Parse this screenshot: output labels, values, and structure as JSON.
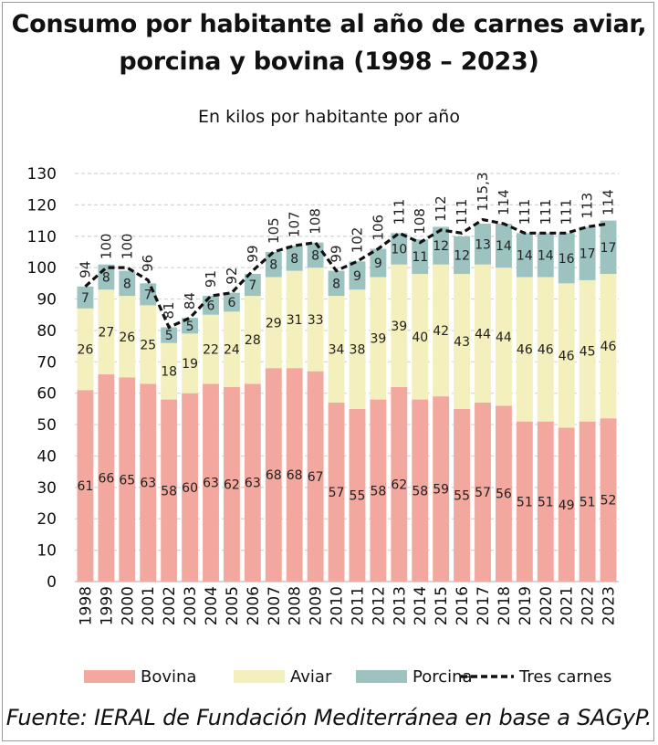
{
  "chart_data": {
    "type": "bar",
    "stacked": true,
    "title": "Consumo por habitante al año de carnes aviar, porcina y bovina (1998 – 2023)",
    "subtitle": "En kilos por habitante por año",
    "source": "Fuente: IERAL de Fundación Mediterránea en base a SAGyP.",
    "categories": [
      "1998",
      "1999",
      "2000",
      "2001",
      "2002",
      "2003",
      "2004",
      "2005",
      "2006",
      "2007",
      "2008",
      "2009",
      "2010",
      "2011",
      "2012",
      "2013",
      "2014",
      "2015",
      "2016",
      "2017",
      "2018",
      "2019",
      "2020",
      "2021",
      "2022",
      "2023"
    ],
    "ylim": [
      0,
      130
    ],
    "yticks": [
      0,
      10,
      20,
      30,
      40,
      50,
      60,
      70,
      80,
      90,
      100,
      110,
      120,
      130
    ],
    "grid": true,
    "legend": "bottom",
    "series": [
      {
        "name": "Bovina",
        "color": "#f2a89e",
        "values": [
          61,
          66,
          65,
          63,
          58,
          60,
          63,
          62,
          63,
          68,
          68,
          67,
          57,
          55,
          58,
          62,
          58,
          59,
          55,
          57,
          56,
          51,
          51,
          49,
          51,
          52
        ]
      },
      {
        "name": "Aviar",
        "color": "#f3f0bd",
        "values": [
          26,
          27,
          26,
          25,
          18,
          19,
          22,
          24,
          28,
          29,
          31,
          33,
          34,
          38,
          39,
          39,
          40,
          42,
          43,
          44,
          44,
          46,
          46,
          46,
          45,
          46
        ]
      },
      {
        "name": "Porcina",
        "color": "#9cc3c0",
        "values": [
          7,
          8,
          8,
          7,
          5,
          5,
          6,
          6,
          7,
          8,
          8,
          8,
          8,
          9,
          9,
          10,
          11,
          12,
          12,
          13,
          14,
          14,
          14,
          16,
          17,
          17
        ]
      },
      {
        "name": "Tres carnes",
        "type": "line",
        "color": "#111111",
        "values": [
          94,
          100,
          100,
          96,
          81,
          84,
          91,
          92,
          99,
          105,
          107,
          108,
          99,
          102,
          106,
          111,
          108,
          112,
          111,
          115.3,
          114,
          111,
          111,
          111,
          113,
          114
        ],
        "labels": [
          "94",
          "100",
          "100",
          "96",
          "81",
          "84",
          "91",
          "92",
          "99",
          "105",
          "107",
          "108",
          "99",
          "102",
          "106",
          "111",
          "108",
          "112",
          "111",
          "115,3",
          "114",
          "111",
          "111",
          "111",
          "113",
          "114"
        ]
      }
    ]
  }
}
